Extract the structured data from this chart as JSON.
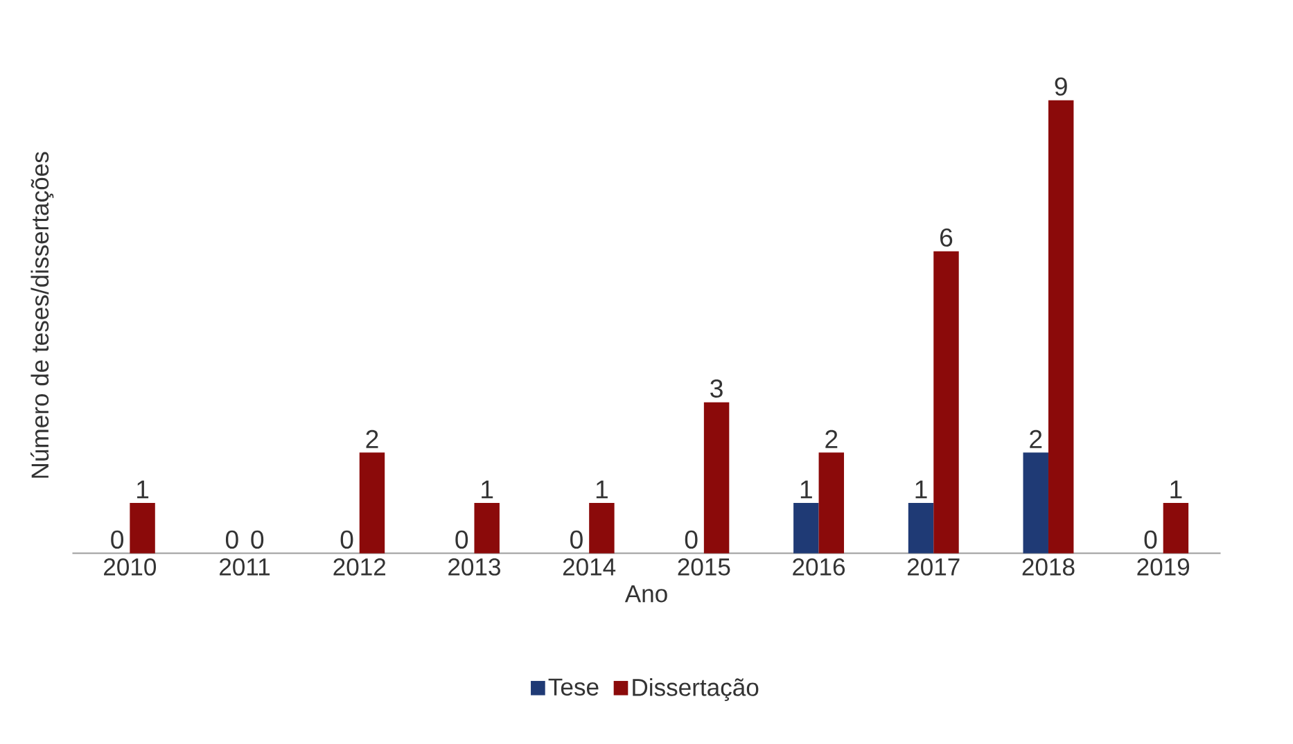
{
  "chart_data": {
    "type": "bar",
    "xlabel": "Ano",
    "ylabel": "Número de teses/dissertações",
    "categories": [
      "2010",
      "2011",
      "2012",
      "2013",
      "2014",
      "2015",
      "2016",
      "2017",
      "2018",
      "2019"
    ],
    "series": [
      {
        "name": "Tese",
        "color": "#1f3a75",
        "values": [
          0,
          0,
          0,
          0,
          0,
          0,
          1,
          1,
          2,
          0
        ]
      },
      {
        "name": "Dissertação",
        "color": "#8b0a0a",
        "values": [
          1,
          0,
          2,
          1,
          1,
          3,
          2,
          6,
          9,
          1
        ]
      }
    ],
    "data_labels": true,
    "legend": "bottom"
  }
}
